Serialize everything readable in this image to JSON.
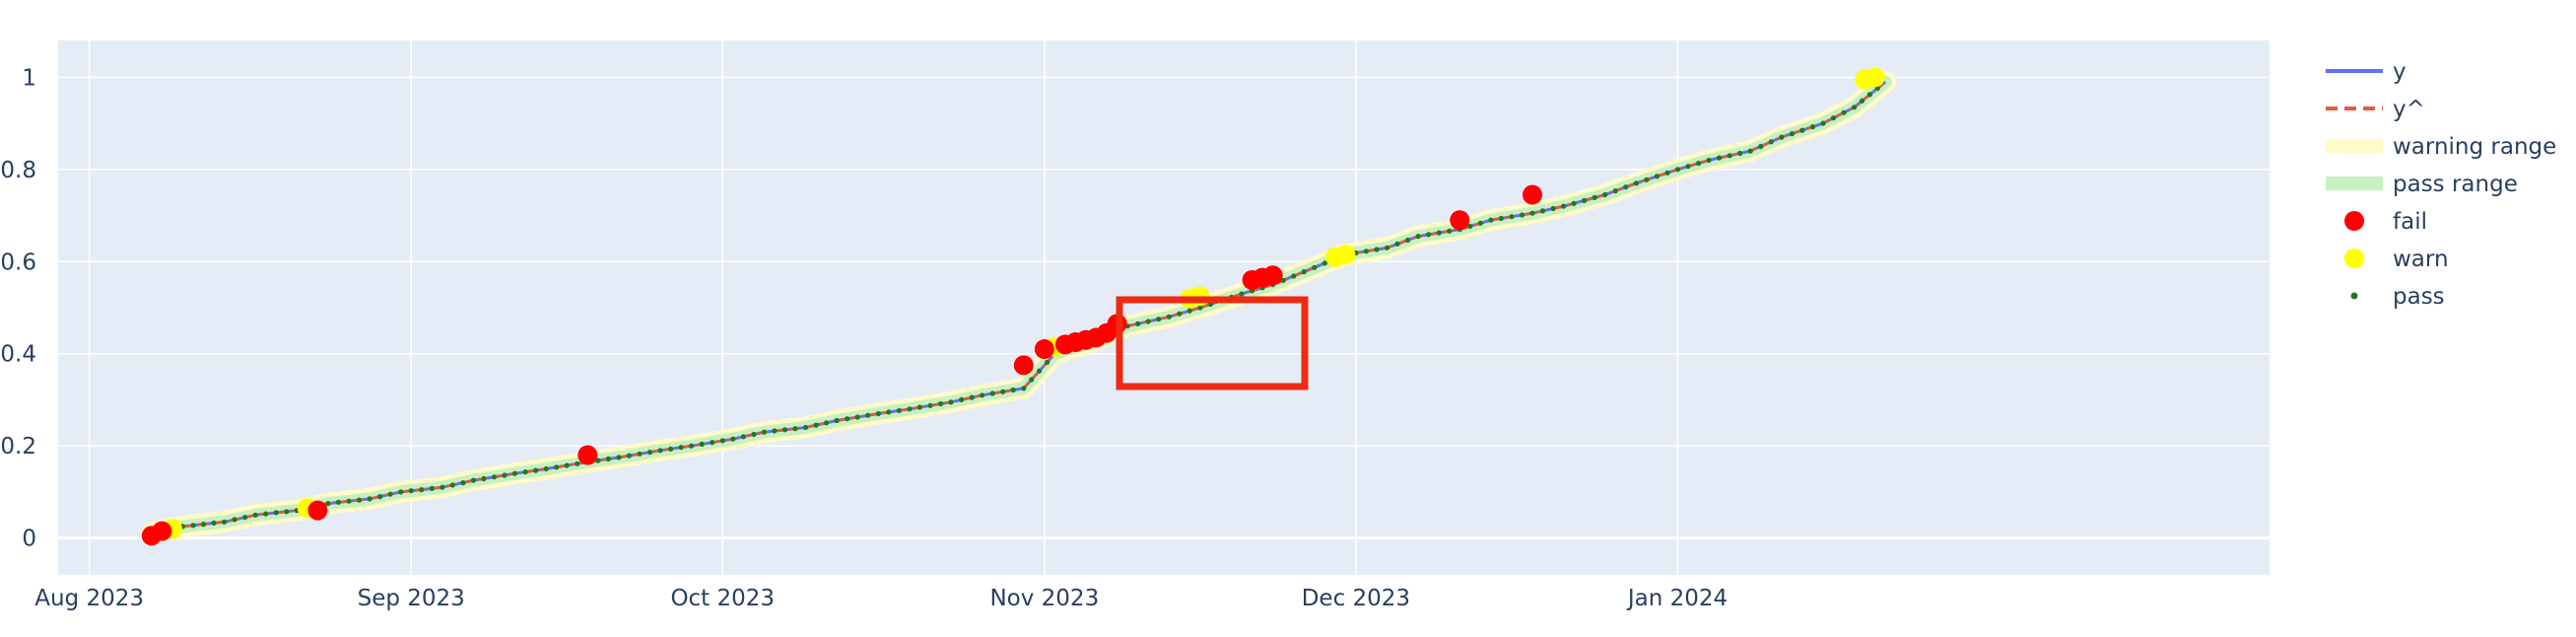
{
  "chart_data": {
    "type": "line",
    "x_axis": {
      "type": "date",
      "range": [
        "2023-07-29",
        "2024-02-27"
      ],
      "ticks": [
        {
          "value": "2023-08-01",
          "label": "Aug 2023"
        },
        {
          "value": "2023-09-01",
          "label": "Sep 2023"
        },
        {
          "value": "2023-10-01",
          "label": "Oct 2023"
        },
        {
          "value": "2023-11-01",
          "label": "Nov 2023"
        },
        {
          "value": "2023-12-01",
          "label": "Dec 2023"
        },
        {
          "value": "2024-01-01",
          "label": "Jan 2024"
        }
      ]
    },
    "y_axis": {
      "range": [
        -0.08,
        1.08
      ],
      "ticks": [
        {
          "value": 0,
          "label": "0"
        },
        {
          "value": 0.2,
          "label": "0.2"
        },
        {
          "value": 0.4,
          "label": "0.4"
        },
        {
          "value": 0.6,
          "label": "0.6"
        },
        {
          "value": 0.8,
          "label": "0.8"
        },
        {
          "value": 1,
          "label": "1"
        }
      ]
    },
    "series": [
      {
        "name": "y",
        "style": "line",
        "color": "#636efa",
        "x": [
          "2023-08-07",
          "2023-08-10",
          "2023-08-14",
          "2023-08-17",
          "2023-08-21",
          "2023-08-24",
          "2023-08-28",
          "2023-08-31",
          "2023-09-04",
          "2023-09-07",
          "2023-09-11",
          "2023-09-14",
          "2023-09-18",
          "2023-09-21",
          "2023-09-25",
          "2023-09-28",
          "2023-10-02",
          "2023-10-05",
          "2023-10-09",
          "2023-10-12",
          "2023-10-16",
          "2023-10-19",
          "2023-10-23",
          "2023-10-26",
          "2023-10-30",
          "2023-11-02",
          "2023-11-06",
          "2023-11-09",
          "2023-11-13",
          "2023-11-16",
          "2023-11-20",
          "2023-11-23",
          "2023-11-30",
          "2023-12-04",
          "2023-12-07",
          "2023-12-11",
          "2023-12-14",
          "2023-12-18",
          "2023-12-21",
          "2023-12-25",
          "2023-12-28",
          "2024-01-01",
          "2024-01-04",
          "2024-01-08",
          "2024-01-11",
          "2024-01-15",
          "2024-01-18",
          "2024-01-21"
        ],
        "y": [
          0.01,
          0.025,
          0.035,
          0.05,
          0.06,
          0.075,
          0.085,
          0.1,
          0.11,
          0.125,
          0.14,
          0.15,
          0.165,
          0.175,
          0.19,
          0.2,
          0.215,
          0.23,
          0.24,
          0.255,
          0.27,
          0.28,
          0.295,
          0.31,
          0.325,
          0.4,
          0.43,
          0.46,
          0.48,
          0.5,
          0.53,
          0.55,
          0.615,
          0.63,
          0.655,
          0.67,
          0.69,
          0.705,
          0.72,
          0.745,
          0.77,
          0.8,
          0.82,
          0.84,
          0.87,
          0.9,
          0.935,
          0.99
        ]
      },
      {
        "name": "y^",
        "style": "dashed-line",
        "color": "#ef553b"
      },
      {
        "name": "warning range",
        "style": "band",
        "color": "#fffac8"
      },
      {
        "name": "pass range",
        "style": "band",
        "color": "#c8f0c0"
      },
      {
        "name": "fail",
        "style": "marker",
        "color": "#ff0000",
        "x": [
          "2023-08-07",
          "2023-08-08",
          "2023-08-23",
          "2023-09-18",
          "2023-10-30",
          "2023-11-01",
          "2023-11-03",
          "2023-11-04",
          "2023-11-05",
          "2023-11-06",
          "2023-11-07",
          "2023-11-08",
          "2023-11-21",
          "2023-11-22",
          "2023-11-23",
          "2023-12-11",
          "2023-12-18"
        ],
        "y": [
          0.005,
          0.015,
          0.06,
          0.18,
          0.375,
          0.41,
          0.42,
          0.425,
          0.43,
          0.435,
          0.445,
          0.465,
          0.56,
          0.565,
          0.57,
          0.69,
          0.745
        ]
      },
      {
        "name": "warn",
        "style": "marker",
        "color": "#ffff00",
        "x": [
          "2023-08-09",
          "2023-08-22",
          "2023-11-02",
          "2023-11-15",
          "2023-11-16",
          "2023-11-29",
          "2023-11-30",
          "2024-01-19",
          "2024-01-20"
        ],
        "y": [
          0.02,
          0.065,
          0.415,
          0.52,
          0.525,
          0.61,
          0.615,
          0.995,
          1.0
        ]
      },
      {
        "name": "pass",
        "style": "marker",
        "color": "#1f7a1f"
      }
    ],
    "legend_position": "right"
  }
}
